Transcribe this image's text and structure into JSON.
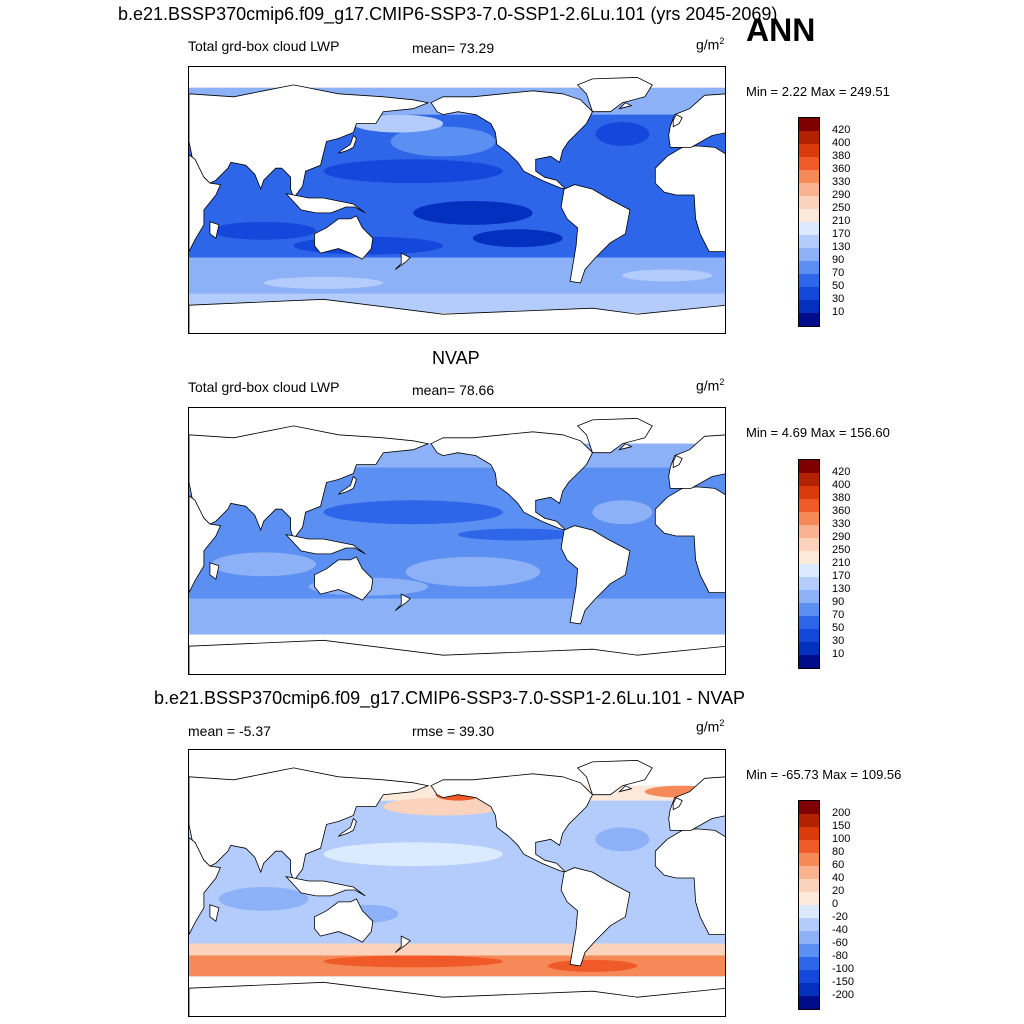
{
  "figure": {
    "main_title": "b.e21.BSSP370cmip6.f09_g17.CMIP6-SSP3-7.0-SSP1-2.6Lu.101 (yrs 2045-2069)",
    "season": "ANN"
  },
  "panels": [
    {
      "title": "",
      "left_label": "Total grd-box cloud LWP",
      "center_label": "mean=  73.29",
      "unit": "g/m",
      "unit_exp": "2",
      "minmax": "Min =   2.22 Max = 249.51",
      "colorbar": "abs"
    },
    {
      "title": "NVAP",
      "left_label": "Total grd-box cloud LWP",
      "center_label": "mean=  78.66",
      "unit": "g/m",
      "unit_exp": "2",
      "minmax": "Min =   4.69 Max = 156.60",
      "colorbar": "abs"
    },
    {
      "title": "b.e21.BSSP370cmip6.f09_g17.CMIP6-SSP3-7.0-SSP1-2.6Lu.101 - NVAP",
      "left_label": "mean =  -5.37",
      "center_label": "rmse =  39.30",
      "unit": "g/m",
      "unit_exp": "2",
      "minmax": "Min = -65.73 Max = 109.56",
      "colorbar": "diff"
    }
  ],
  "colorbars": {
    "abs": {
      "labels": [
        "420",
        "400",
        "380",
        "360",
        "330",
        "290",
        "250",
        "210",
        "170",
        "130",
        "90",
        "70",
        "50",
        "30",
        "10"
      ],
      "colors": [
        "#7f0000",
        "#b22200",
        "#db3b0a",
        "#f05a28",
        "#f58a58",
        "#f9b28f",
        "#fbd2bb",
        "#fde9da",
        "#dbeafe",
        "#b4ccfb",
        "#8cb1f7",
        "#5c8ff2",
        "#2e66ea",
        "#1447db",
        "#0430c0",
        "#000c8a"
      ]
    },
    "diff": {
      "labels": [
        "200",
        "150",
        "100",
        "80",
        "60",
        "40",
        "20",
        "0",
        "-20",
        "-40",
        "-60",
        "-80",
        "-100",
        "-150",
        "-200"
      ],
      "colors": [
        "#7f0000",
        "#b22200",
        "#db3b0a",
        "#f05a28",
        "#f58a58",
        "#f9b28f",
        "#fbd2bb",
        "#fde9da",
        "#dbeafe",
        "#b4ccfb",
        "#8cb1f7",
        "#5c8ff2",
        "#2e66ea",
        "#1447db",
        "#0430c0",
        "#000c8a"
      ]
    }
  }
}
